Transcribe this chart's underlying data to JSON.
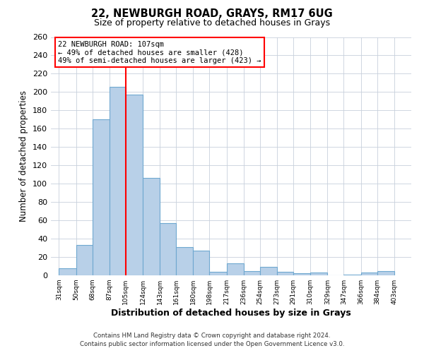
{
  "title": "22, NEWBURGH ROAD, GRAYS, RM17 6UG",
  "subtitle": "Size of property relative to detached houses in Grays",
  "xlabel": "Distribution of detached houses by size in Grays",
  "ylabel": "Number of detached properties",
  "bar_left_edges": [
    31,
    50,
    68,
    87,
    105,
    124,
    143,
    161,
    180,
    198,
    217,
    236,
    254,
    273,
    291,
    310,
    329,
    347,
    366,
    384
  ],
  "bar_heights": [
    8,
    33,
    170,
    206,
    197,
    106,
    57,
    31,
    27,
    4,
    13,
    5,
    9,
    4,
    2,
    3,
    0,
    1,
    3,
    5
  ],
  "bar_widths": [
    19,
    18,
    19,
    18,
    19,
    19,
    18,
    19,
    18,
    19,
    19,
    18,
    19,
    18,
    19,
    19,
    18,
    19,
    18,
    19
  ],
  "tick_labels": [
    "31sqm",
    "50sqm",
    "68sqm",
    "87sqm",
    "105sqm",
    "124sqm",
    "143sqm",
    "161sqm",
    "180sqm",
    "198sqm",
    "217sqm",
    "236sqm",
    "254sqm",
    "273sqm",
    "291sqm",
    "310sqm",
    "329sqm",
    "347sqm",
    "366sqm",
    "384sqm",
    "403sqm"
  ],
  "tick_positions": [
    31,
    50,
    68,
    87,
    105,
    124,
    143,
    161,
    180,
    198,
    217,
    236,
    254,
    273,
    291,
    310,
    329,
    347,
    366,
    384,
    403
  ],
  "bar_color": "#b8d0e8",
  "bar_edge_color": "#6fa8d0",
  "vline_x": 105,
  "vline_color": "red",
  "ylim": [
    0,
    260
  ],
  "xlim": [
    22,
    422
  ],
  "annotation_title": "22 NEWBURGH ROAD: 107sqm",
  "annotation_line1": "← 49% of detached houses are smaller (428)",
  "annotation_line2": "49% of semi-detached houses are larger (423) →",
  "annotation_box_color": "red",
  "footer_line1": "Contains HM Land Registry data © Crown copyright and database right 2024.",
  "footer_line2": "Contains public sector information licensed under the Open Government Licence v3.0.",
  "grid_color": "#c8d0dc",
  "ax_background": "#ffffff",
  "fig_background": "#ffffff"
}
